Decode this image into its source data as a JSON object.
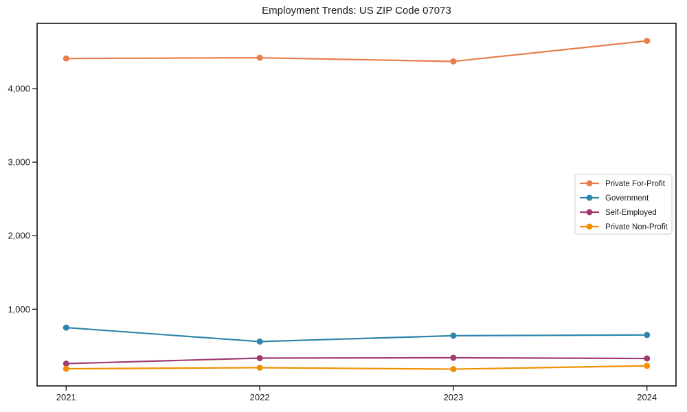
{
  "chart_data": {
    "type": "line",
    "title": "Employment Trends: US ZIP Code 07073",
    "xlabel": "",
    "ylabel": "",
    "x": [
      2021,
      2022,
      2023,
      2024
    ],
    "x_tick_labels": [
      "2021",
      "2022",
      "2023",
      "2024"
    ],
    "y_ticks": [
      1000,
      2000,
      3000,
      4000
    ],
    "y_tick_labels": [
      "1,000",
      "2,000",
      "3,000",
      "4,000"
    ],
    "xlim": [
      2020.85,
      2024.15
    ],
    "ylim": [
      -43,
      4888
    ],
    "grid": false,
    "series": [
      {
        "name": "Private For-Profit",
        "color": "#E87D4B",
        "values": [
          4410,
          4420,
          4370,
          4650
        ]
      },
      {
        "name": "Government",
        "color": "#2E86AB",
        "values": [
          750,
          560,
          640,
          650
        ]
      },
      {
        "name": "Self-Employed",
        "color": "#A23B72",
        "values": [
          260,
          335,
          340,
          330
        ]
      },
      {
        "name": "Private Non-Profit",
        "color": "#F18F01",
        "values": [
          190,
          205,
          185,
          230
        ]
      }
    ],
    "legend": {
      "position": "right-middle",
      "background": "#ffffff",
      "border_color": "#cccccc"
    },
    "axis_color": "#000000",
    "text_color": "#1a1a1a",
    "background": "#ffffff"
  }
}
